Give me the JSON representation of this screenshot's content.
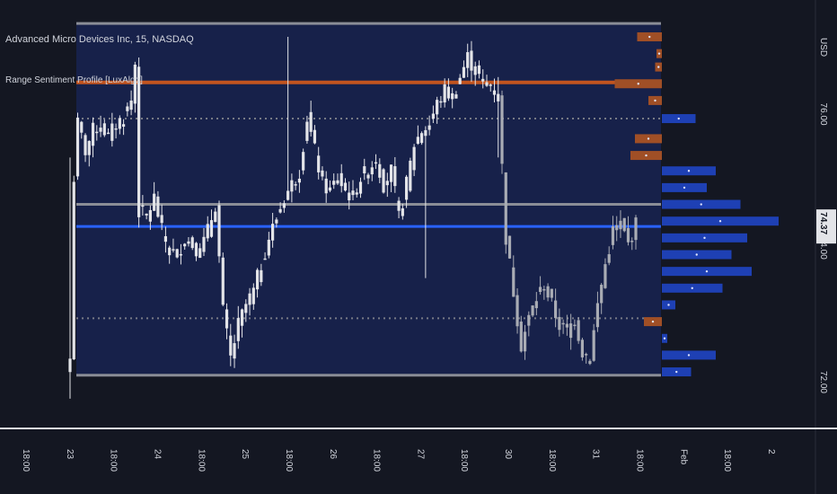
{
  "header": {
    "symbol_title": "Advanced Micro Devices Inc, 15, NASDAQ",
    "indicator_name": "Range Sentiment Profile [LuxAlgo]",
    "currency": "USD"
  },
  "colors": {
    "background": "#141722",
    "range_fill": "#17214a",
    "range_border": "#8a8d96",
    "candle": "#e3e4e8",
    "candle_late": "#a9acb4",
    "bearish": "#a04f26",
    "bullish": "#1e40b4",
    "resistance_line": "#c2541f",
    "current_line": "#2962ff",
    "dotted": "#787b86",
    "price_badge": "#e3e4e8"
  },
  "chart_data": {
    "type": "candlestick",
    "title": "Advanced Micro Devices Inc, 15, NASDAQ",
    "currency": "USD",
    "y_ticks": [
      "76.00",
      "74.00",
      "72.00"
    ],
    "ylim": [
      71.45,
      77.75
    ],
    "last_price": "74.37",
    "x_ticks": [
      "18:00",
      "23",
      "18:00",
      "24",
      "18:00",
      "25",
      "18:00",
      "26",
      "18:00",
      "27",
      "18:00",
      "30",
      "18:00",
      "31",
      "18:00",
      "Feb",
      "18:00",
      "2"
    ],
    "range_box": {
      "top": 77.4,
      "bottom": 72.15
    },
    "levels": {
      "resistance": 76.52,
      "midline": 74.7,
      "current_profile_line": 74.37,
      "dotted_upper": 75.98,
      "dotted_lower": 73.0
    },
    "profile_rows": [
      {
        "price": 77.2,
        "bearish": 0.11,
        "bullish": 0
      },
      {
        "price": 76.95,
        "bearish": 0.02,
        "bullish": 0
      },
      {
        "price": 76.75,
        "bearish": 0.03,
        "bullish": 0
      },
      {
        "price": 76.5,
        "bearish": 0.21,
        "bullish": 0
      },
      {
        "price": 76.25,
        "bearish": 0.06,
        "bullish": 0
      },
      {
        "price": 75.98,
        "bearish": 0,
        "bullish": 0.15
      },
      {
        "price": 75.68,
        "bearish": 0.12,
        "bullish": 0
      },
      {
        "price": 75.43,
        "bearish": 0.14,
        "bullish": 0
      },
      {
        "price": 75.2,
        "bearish": 0,
        "bullish": 0.24
      },
      {
        "price": 74.95,
        "bearish": 0,
        "bullish": 0.2
      },
      {
        "price": 74.7,
        "bearish": 0,
        "bullish": 0.35
      },
      {
        "price": 74.45,
        "bearish": 0,
        "bullish": 0.52
      },
      {
        "price": 74.2,
        "bearish": 0,
        "bullish": 0.38
      },
      {
        "price": 73.95,
        "bearish": 0,
        "bullish": 0.31
      },
      {
        "price": 73.7,
        "bearish": 0,
        "bullish": 0.4
      },
      {
        "price": 73.45,
        "bearish": 0,
        "bullish": 0.27
      },
      {
        "price": 73.2,
        "bearish": 0,
        "bullish": 0.06
      },
      {
        "price": 72.95,
        "bearish": 0.08,
        "bullish": 0
      },
      {
        "price": 72.7,
        "bearish": 0,
        "bullish": 0.02
      },
      {
        "price": 72.45,
        "bearish": 0,
        "bullish": 0.24
      },
      {
        "price": 72.2,
        "bearish": 0,
        "bullish": 0.13
      }
    ],
    "close_path": [
      [
        0,
        72.4
      ],
      [
        1,
        75.1
      ],
      [
        2,
        75.9
      ],
      [
        4,
        75.5
      ],
      [
        6,
        75.8
      ],
      [
        8,
        75.9
      ],
      [
        10,
        75.7
      ],
      [
        12,
        75.9
      ],
      [
        14,
        76.0
      ],
      [
        16,
        76.25
      ],
      [
        17,
        76.8
      ],
      [
        18,
        74.6
      ],
      [
        20,
        74.5
      ],
      [
        22,
        74.8
      ],
      [
        24,
        74.3
      ],
      [
        26,
        74.0
      ],
      [
        28,
        73.95
      ],
      [
        30,
        74.2
      ],
      [
        32,
        74.1
      ],
      [
        34,
        74.0
      ],
      [
        36,
        74.3
      ],
      [
        38,
        74.7
      ],
      [
        40,
        73.1
      ],
      [
        42,
        72.4
      ],
      [
        44,
        72.9
      ],
      [
        46,
        73.2
      ],
      [
        48,
        73.4
      ],
      [
        50,
        73.8
      ],
      [
        52,
        74.2
      ],
      [
        54,
        74.5
      ],
      [
        56,
        74.8
      ],
      [
        58,
        75.0
      ],
      [
        60,
        75.2
      ],
      [
        62,
        76.0
      ],
      [
        64,
        75.5
      ],
      [
        66,
        75.0
      ],
      [
        68,
        74.9
      ],
      [
        70,
        75.1
      ],
      [
        72,
        74.9
      ],
      [
        74,
        74.8
      ],
      [
        76,
        75.1
      ],
      [
        78,
        75.2
      ],
      [
        80,
        75.4
      ],
      [
        82,
        75.0
      ],
      [
        84,
        75.2
      ],
      [
        86,
        74.5
      ],
      [
        88,
        75.0
      ],
      [
        90,
        75.6
      ],
      [
        92,
        75.8
      ],
      [
        94,
        75.9
      ],
      [
        96,
        76.2
      ],
      [
        98,
        76.4
      ],
      [
        100,
        76.3
      ],
      [
        102,
        76.6
      ],
      [
        104,
        76.9
      ],
      [
        106,
        76.7
      ],
      [
        108,
        76.5
      ],
      [
        110,
        76.5
      ],
      [
        112,
        76.3
      ],
      [
        114,
        74.2
      ],
      [
        116,
        73.4
      ],
      [
        118,
        72.6
      ],
      [
        120,
        73.0
      ],
      [
        122,
        73.3
      ],
      [
        124,
        73.5
      ],
      [
        126,
        73.2
      ],
      [
        128,
        72.9
      ],
      [
        130,
        72.8
      ],
      [
        132,
        73.0
      ],
      [
        134,
        72.5
      ],
      [
        136,
        72.4
      ],
      [
        138,
        73.2
      ],
      [
        140,
        73.8
      ],
      [
        142,
        74.3
      ],
      [
        144,
        74.4
      ],
      [
        146,
        74.1
      ],
      [
        148,
        74.4
      ]
    ],
    "dim_start_index": 113,
    "spikes": [
      {
        "i": 0,
        "high": 75.4,
        "low": 71.8
      },
      {
        "i": 57,
        "high": 77.2,
        "low": 75.3
      },
      {
        "i": 93,
        "high": 75.2,
        "low": 73.6
      },
      {
        "i": 112,
        "high": 76.6,
        "low": 75.4
      }
    ]
  }
}
